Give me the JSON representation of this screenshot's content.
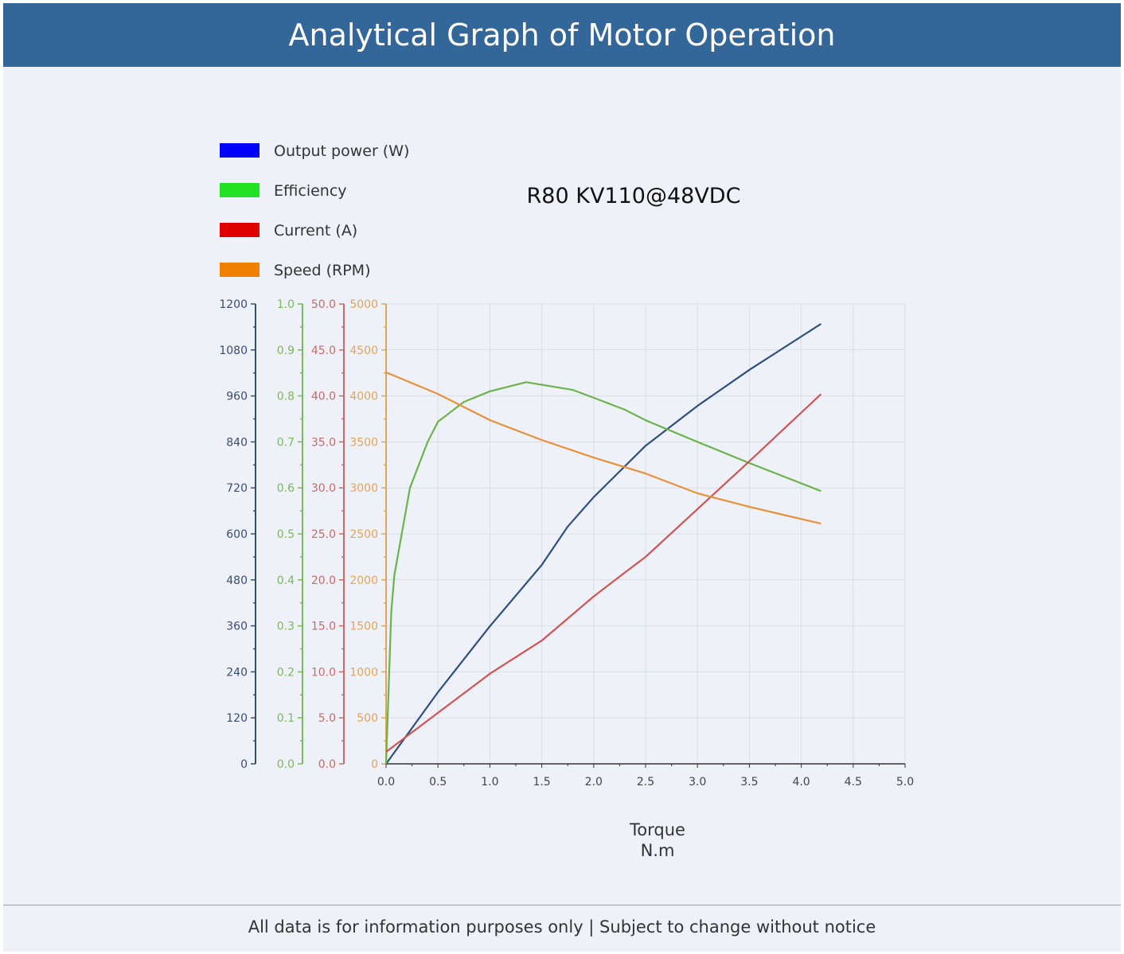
{
  "header": {
    "title": "Analytical Graph of Motor Operation"
  },
  "footer": {
    "text": "All data is for information purposes only | Subject to change without notice"
  },
  "chart_data": {
    "type": "line",
    "title": "R80 KV110@48VDC",
    "xlabel": "Torque",
    "xunit": "N.m",
    "xlim": [
      0,
      5.0
    ],
    "xticks": [
      "0.0",
      "0.5",
      "1.0",
      "1.5",
      "2.0",
      "2.5",
      "3.0",
      "3.5",
      "4.0",
      "4.5",
      "5.0"
    ],
    "grid": true,
    "legend_position": "top-left",
    "axes": [
      {
        "id": "power",
        "color": "#3a4d6e",
        "ylim": [
          0,
          1200
        ],
        "ticks": [
          "0",
          "120",
          "240",
          "360",
          "480",
          "600",
          "720",
          "840",
          "960",
          "1080",
          "1200"
        ]
      },
      {
        "id": "eff",
        "color": "#7ab85a",
        "ylim": [
          0,
          1.0
        ],
        "ticks": [
          "0.0",
          "0.1",
          "0.2",
          "0.3",
          "0.4",
          "0.5",
          "0.6",
          "0.7",
          "0.8",
          "0.9",
          "1.0"
        ]
      },
      {
        "id": "current",
        "color": "#c86a6a",
        "ylim": [
          0,
          50
        ],
        "ticks": [
          "0.0",
          "5.0",
          "10.0",
          "15.0",
          "20.0",
          "25.0",
          "30.0",
          "35.0",
          "40.0",
          "45.0",
          "50.0"
        ]
      },
      {
        "id": "speed",
        "color": "#e0a55a",
        "ylim": [
          0,
          5000
        ],
        "ticks": [
          "0",
          "500",
          "1000",
          "1500",
          "2000",
          "2500",
          "3000",
          "3500",
          "4000",
          "4500",
          "5000"
        ]
      }
    ],
    "series": [
      {
        "name": "Output power (W)",
        "axis": "power",
        "legend_color": "#0000ff",
        "line_color": "#2e4f7e",
        "x": [
          0,
          0.5,
          1.0,
          1.5,
          1.75,
          2.0,
          2.5,
          3.0,
          3.5,
          4.19
        ],
        "y": [
          0,
          187,
          359,
          519,
          619,
          696,
          830,
          934,
          1028,
          1148
        ]
      },
      {
        "name": "Efficiency",
        "axis": "eff",
        "legend_color": "#22e022",
        "line_color": "#6bb34a",
        "x": [
          0,
          0.05,
          0.08,
          0.23,
          0.4,
          0.5,
          0.75,
          1.0,
          1.35,
          1.8,
          2.0,
          2.3,
          2.5,
          3.0,
          3.5,
          4.19
        ],
        "y": [
          0,
          0.33,
          0.41,
          0.6,
          0.7,
          0.744,
          0.787,
          0.81,
          0.83,
          0.813,
          0.796,
          0.77,
          0.747,
          0.7,
          0.654,
          0.593
        ]
      },
      {
        "name": "Current (A)",
        "axis": "current",
        "legend_color": "#e00000",
        "line_color": "#d05454",
        "x": [
          0,
          1.0,
          1.5,
          2.0,
          2.3,
          2.5,
          3.0,
          3.5,
          4.19
        ],
        "y": [
          1.3,
          9.8,
          13.4,
          18.2,
          20.8,
          22.5,
          27.7,
          32.9,
          40.2
        ]
      },
      {
        "name": "Speed (RPM)",
        "axis": "speed",
        "legend_color": "#f08000",
        "line_color": "#e8903a",
        "x": [
          0,
          0.5,
          1.0,
          1.5,
          2.0,
          2.5,
          3.0,
          3.5,
          4.19
        ],
        "y": [
          4256,
          4022,
          3737,
          3521,
          3330,
          3157,
          2941,
          2794,
          2612
        ]
      }
    ]
  }
}
